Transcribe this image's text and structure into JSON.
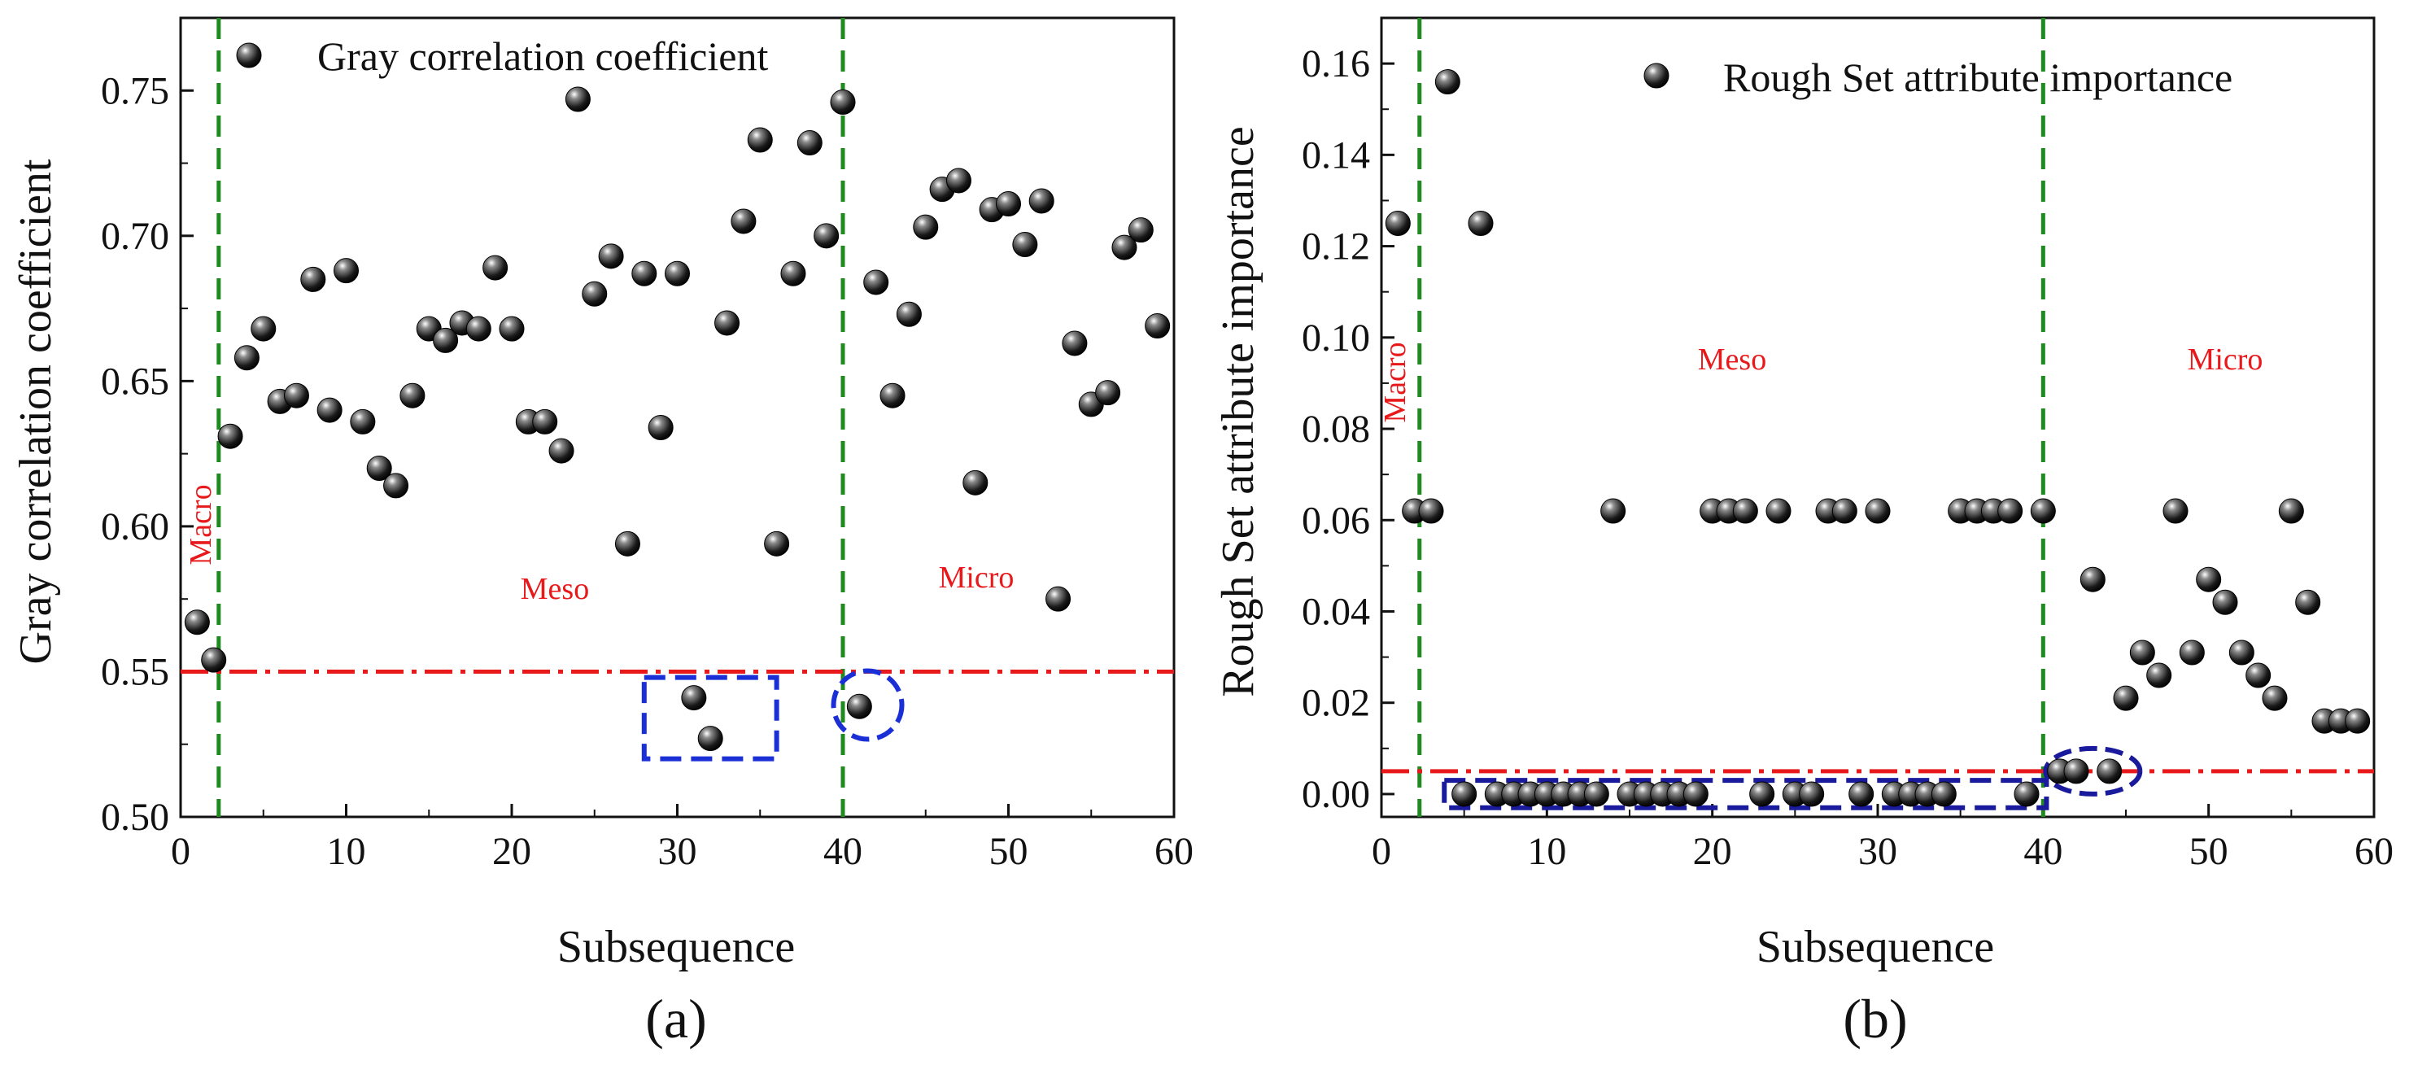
{
  "colors": {
    "axis": "#111111",
    "marker": "#1a1a1a",
    "vline": "#1f8a1f",
    "threshold": "#e8191b",
    "region_text": "#e8191b",
    "box": "#1a2fd6",
    "box_b": "#1a1a9c"
  },
  "chart_data": [
    {
      "type": "scatter",
      "panel_label": "(a)",
      "xlabel": "Subsequence",
      "ylabel": "Gray correlation coefficient",
      "legend": "Gray correlation coefficient",
      "xlim": [
        0,
        60
      ],
      "ylim": [
        0.5,
        0.775
      ],
      "xticks": [
        "0",
        "10",
        "20",
        "30",
        "40",
        "50",
        "60"
      ],
      "yticks": [
        "0.50",
        "0.55",
        "0.60",
        "0.65",
        "0.70",
        "0.75"
      ],
      "threshold": 0.55,
      "vlines": [
        2.3,
        40
      ],
      "regions": [
        "Macro",
        "Meso",
        "Micro"
      ],
      "points": [
        [
          1,
          0.567
        ],
        [
          2,
          0.554
        ],
        [
          3,
          0.631
        ],
        [
          4,
          0.658
        ],
        [
          5,
          0.668
        ],
        [
          6,
          0.643
        ],
        [
          7,
          0.645
        ],
        [
          8,
          0.685
        ],
        [
          9,
          0.64
        ],
        [
          10,
          0.688
        ],
        [
          11,
          0.636
        ],
        [
          12,
          0.62
        ],
        [
          13,
          0.614
        ],
        [
          14,
          0.645
        ],
        [
          15,
          0.668
        ],
        [
          16,
          0.664
        ],
        [
          17,
          0.67
        ],
        [
          18,
          0.668
        ],
        [
          19,
          0.689
        ],
        [
          20,
          0.668
        ],
        [
          21,
          0.636
        ],
        [
          22,
          0.636
        ],
        [
          23,
          0.626
        ],
        [
          24,
          0.747
        ],
        [
          25,
          0.68
        ],
        [
          26,
          0.693
        ],
        [
          27,
          0.594
        ],
        [
          28,
          0.687
        ],
        [
          29,
          0.634
        ],
        [
          30,
          0.687
        ],
        [
          31,
          0.541
        ],
        [
          32,
          0.527
        ],
        [
          33,
          0.67
        ],
        [
          34,
          0.705
        ],
        [
          35,
          0.733
        ],
        [
          36,
          0.594
        ],
        [
          37,
          0.687
        ],
        [
          38,
          0.732
        ],
        [
          39,
          0.7
        ],
        [
          40,
          0.746
        ],
        [
          41,
          0.538
        ],
        [
          42,
          0.684
        ],
        [
          43,
          0.645
        ],
        [
          44,
          0.673
        ],
        [
          45,
          0.703
        ],
        [
          46,
          0.716
        ],
        [
          47,
          0.719
        ],
        [
          48,
          0.615
        ],
        [
          49,
          0.709
        ],
        [
          50,
          0.711
        ],
        [
          51,
          0.697
        ],
        [
          52,
          0.712
        ],
        [
          53,
          0.575
        ],
        [
          54,
          0.663
        ],
        [
          55,
          0.642
        ],
        [
          56,
          0.646
        ],
        [
          57,
          0.696
        ],
        [
          58,
          0.702
        ],
        [
          59,
          0.669
        ]
      ]
    },
    {
      "type": "scatter",
      "panel_label": "(b)",
      "xlabel": "Subsequence",
      "ylabel": "Rough Set attribute importance",
      "legend": "Rough Set attribute importance",
      "xlim": [
        0,
        60
      ],
      "ylim": [
        -0.005,
        0.17
      ],
      "xticks": [
        "0",
        "10",
        "20",
        "30",
        "40",
        "50",
        "60"
      ],
      "yticks": [
        "0.00",
        "0.02",
        "0.04",
        "0.06",
        "0.08",
        "0.10",
        "0.12",
        "0.14",
        "0.16"
      ],
      "threshold": 0.005,
      "vlines": [
        2.3,
        40
      ],
      "regions": [
        "Macro",
        "Meso",
        "Micro"
      ],
      "points": [
        [
          1,
          0.125
        ],
        [
          2,
          0.062
        ],
        [
          3,
          0.062
        ],
        [
          4,
          0.156
        ],
        [
          5,
          0
        ],
        [
          6,
          0.125
        ],
        [
          7,
          0
        ],
        [
          8,
          0
        ],
        [
          9,
          0
        ],
        [
          10,
          0
        ],
        [
          11,
          0
        ],
        [
          12,
          0
        ],
        [
          13,
          0
        ],
        [
          14,
          0.062
        ],
        [
          15,
          0
        ],
        [
          16,
          0
        ],
        [
          17,
          0
        ],
        [
          18,
          0
        ],
        [
          19,
          0
        ],
        [
          20,
          0.062
        ],
        [
          21,
          0.062
        ],
        [
          22,
          0.062
        ],
        [
          23,
          0
        ],
        [
          24,
          0.062
        ],
        [
          25,
          0
        ],
        [
          26,
          0
        ],
        [
          27,
          0.062
        ],
        [
          28,
          0.062
        ],
        [
          29,
          0
        ],
        [
          30,
          0.062
        ],
        [
          31,
          0
        ],
        [
          32,
          0
        ],
        [
          33,
          0
        ],
        [
          34,
          0
        ],
        [
          35,
          0.062
        ],
        [
          36,
          0.062
        ],
        [
          37,
          0.062
        ],
        [
          38,
          0.062
        ],
        [
          39,
          0
        ],
        [
          40,
          0.062
        ],
        [
          41,
          0.005
        ],
        [
          42,
          0.005
        ],
        [
          43,
          0.047
        ],
        [
          44,
          0.005
        ],
        [
          45,
          0.021
        ],
        [
          46,
          0.031
        ],
        [
          47,
          0.026
        ],
        [
          48,
          0.062
        ],
        [
          49,
          0.031
        ],
        [
          50,
          0.047
        ],
        [
          51,
          0.042
        ],
        [
          52,
          0.031
        ],
        [
          53,
          0.026
        ],
        [
          54,
          0.021
        ],
        [
          55,
          0.062
        ],
        [
          56,
          0.042
        ],
        [
          57,
          0.016
        ],
        [
          58,
          0.016
        ],
        [
          59,
          0.016
        ]
      ]
    }
  ]
}
